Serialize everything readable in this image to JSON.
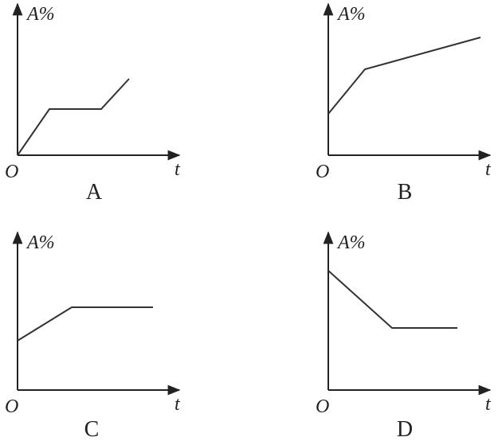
{
  "panels": [
    {
      "y_label": "A%",
      "origin": "O",
      "x_label": "t",
      "caption": "A"
    },
    {
      "y_label": "A%",
      "origin": "O",
      "x_label": "t",
      "caption": "B"
    },
    {
      "y_label": "A%",
      "origin": "O",
      "x_label": "t",
      "caption": "C"
    },
    {
      "y_label": "A%",
      "origin": "O",
      "x_label": "t",
      "caption": "D"
    }
  ]
}
